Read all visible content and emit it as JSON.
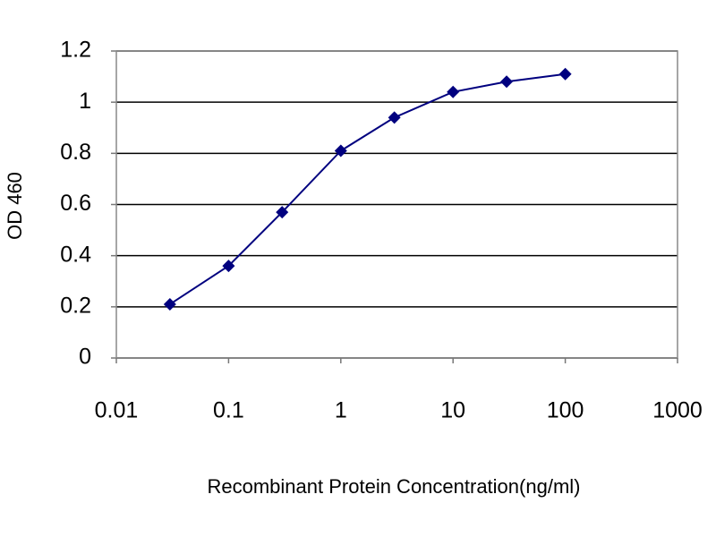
{
  "chart_data": {
    "type": "line",
    "x_label": "Recombinant Protein Concentration(ng/ml)",
    "y_label": "OD 460",
    "x_scale": "log",
    "x": [
      0.03,
      0.1,
      0.3,
      1,
      3,
      10,
      30,
      100
    ],
    "series": [
      {
        "color": "#00007f",
        "values": [
          0.21,
          0.36,
          0.57,
          0.81,
          0.94,
          1.04,
          1.08,
          1.11
        ]
      }
    ],
    "xlim": [
      0.01,
      1000
    ],
    "xticks": [
      0.01,
      0.1,
      1,
      10,
      100,
      1000
    ],
    "ylim": [
      0,
      1.2
    ],
    "yticks": [
      0,
      0.2,
      0.4,
      0.6,
      0.8,
      1,
      1.2
    ],
    "grid": true
  }
}
